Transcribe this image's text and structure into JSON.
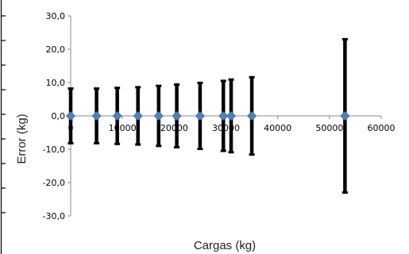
{
  "chart_data": {
    "type": "scatter",
    "title": "",
    "xlabel": "Cargas (kg)",
    "ylabel": "Error (kg)",
    "xlim": [
      0,
      60000
    ],
    "ylim": [
      -30,
      30
    ],
    "x_ticks": [
      0,
      10000,
      20000,
      30000,
      40000,
      50000,
      60000
    ],
    "x_tick_labels": [
      "0",
      "10000",
      "20000",
      "30000",
      "40000",
      "50000",
      "60000"
    ],
    "y_ticks": [
      30,
      20,
      10,
      0,
      -10,
      -20,
      -30
    ],
    "y_tick_labels": [
      "30,0",
      "20,0",
      "10,0",
      "0,0",
      "-10,0",
      "-20,0",
      "-30,0"
    ],
    "grid": false,
    "legend": "none",
    "series": [
      {
        "marker_color": "#4f81bd",
        "errorbar_color": "#000000",
        "x": [
          0,
          5000,
          9000,
          13000,
          17000,
          20500,
          25000,
          29500,
          31000,
          35000,
          53000
        ],
        "y": [
          0,
          0,
          0,
          0,
          0,
          0,
          0,
          0,
          0,
          0,
          0
        ],
        "error": [
          8.2,
          8.2,
          8.4,
          8.6,
          9.0,
          9.4,
          9.9,
          10.5,
          10.9,
          11.6,
          23.0
        ]
      }
    ]
  }
}
